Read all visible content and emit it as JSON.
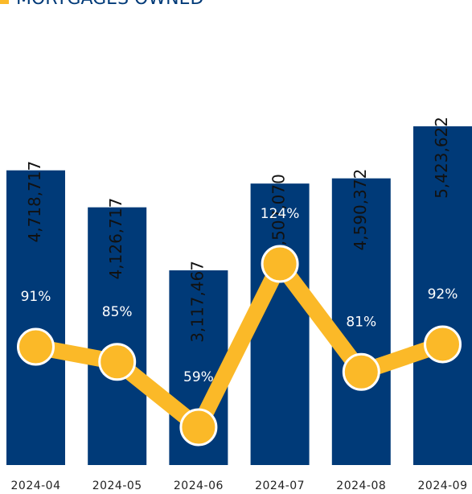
{
  "chart_data": {
    "type": "bar",
    "categories": [
      "2024-04",
      "2024-05",
      "2024-06",
      "2024-07",
      "2024-08",
      "2024-09"
    ],
    "series": [
      {
        "type": "bar",
        "color": "#003a78",
        "values": [
          4718717,
          4126717,
          3117467,
          4507070,
          4590372,
          5423622
        ],
        "value_labels": [
          "4,718,717",
          "4,126,717",
          "3,117,467",
          "4,507,070",
          "4,590,372",
          "5,423,622"
        ]
      },
      {
        "type": "line",
        "name": "MORTGAGES OWNED",
        "color": "#fbb928",
        "values": [
          91,
          85,
          59,
          124,
          81,
          92
        ],
        "value_labels": [
          "91%",
          "85%",
          "59%",
          "124%",
          "81%",
          "92%"
        ]
      }
    ],
    "legend": "top-left"
  }
}
